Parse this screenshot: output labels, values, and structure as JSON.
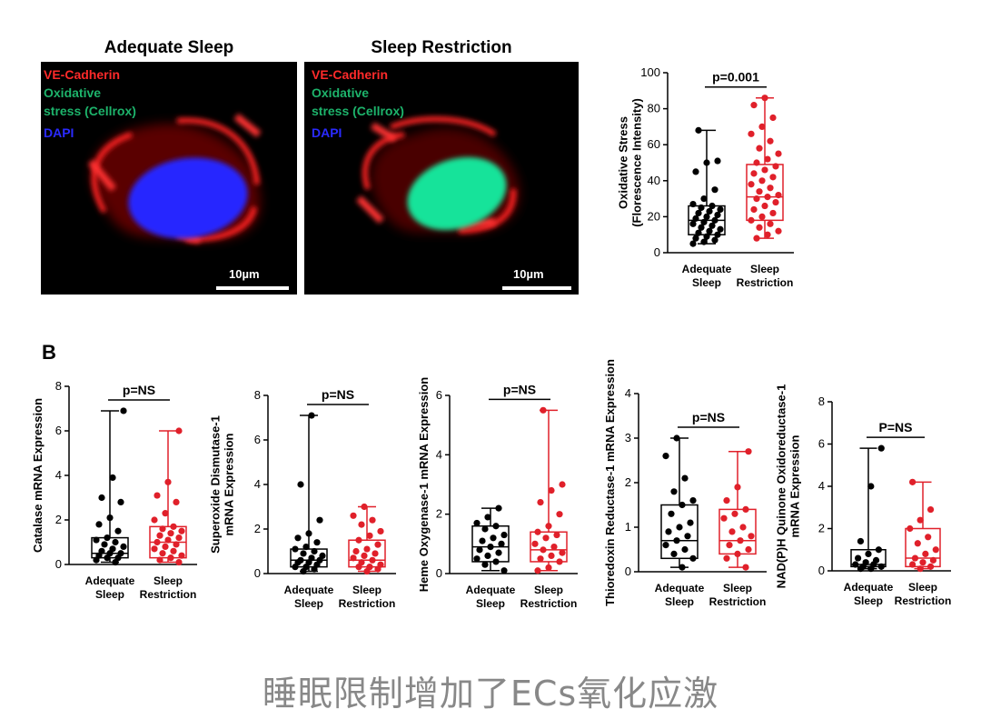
{
  "panel_a": {
    "images": [
      {
        "title": "Adequate Sleep",
        "labels": [
          "VE-Cadherin",
          "Oxidative",
          "stress (Cellrox)",
          "DAPI"
        ],
        "scale_bar": "10µm"
      },
      {
        "title": "Sleep Restriction",
        "labels": [
          "VE-Cadherin",
          "Oxidative",
          "stress (Cellrox)",
          "DAPI"
        ],
        "scale_bar": "10µm"
      }
    ],
    "label_colors": [
      "#ff2a2a",
      "#1db36b",
      "#1db36b",
      "#2a2aff"
    ]
  },
  "panel_b_letter": "B",
  "caption": "睡眠限制增加了ECs氧化应激",
  "colors": {
    "group1": "#000000",
    "group2": "#e0202a"
  },
  "chart_data": [
    {
      "type": "boxplot",
      "ylabel": [
        "Oxidative Stress",
        "(Florescence Intensity)"
      ],
      "ylim": [
        0,
        100
      ],
      "yticks": [
        0,
        20,
        40,
        60,
        80,
        100
      ],
      "groups": [
        {
          "label": [
            "Adequate",
            "Sleep"
          ],
          "min": 5,
          "q1": 10,
          "median": 18,
          "q3": 26,
          "max": 68,
          "points": [
            5,
            6,
            7,
            8,
            9,
            10,
            11,
            12,
            13,
            14,
            15,
            16,
            17,
            18,
            19,
            20,
            21,
            22,
            23,
            24,
            25,
            26,
            27,
            30,
            35,
            45,
            50,
            51,
            68
          ]
        },
        {
          "label": [
            "Sleep",
            "Restriction"
          ],
          "min": 8,
          "q1": 18,
          "median": 31,
          "q3": 49,
          "max": 86,
          "points": [
            8,
            10,
            12,
            14,
            16,
            18,
            20,
            22,
            24,
            26,
            28,
            30,
            31,
            32,
            34,
            36,
            38,
            40,
            42,
            44,
            46,
            48,
            50,
            52,
            55,
            58,
            62,
            66,
            70,
            75,
            82,
            86
          ]
        }
      ],
      "annotation": "p=0.001"
    },
    {
      "type": "boxplot",
      "ylabel": [
        "Catalase mRNA Expression"
      ],
      "ylim": [
        0,
        8
      ],
      "yticks": [
        0,
        2,
        4,
        6,
        8
      ],
      "groups": [
        {
          "label": [
            "Adequate",
            "Sleep"
          ],
          "min": 0.1,
          "q1": 0.3,
          "median": 0.5,
          "q3": 1.2,
          "max": 6.9,
          "points": [
            0.1,
            0.2,
            0.3,
            0.3,
            0.4,
            0.5,
            0.5,
            0.6,
            0.7,
            0.8,
            0.9,
            1.0,
            1.1,
            1.2,
            1.5,
            1.8,
            2.1,
            2.8,
            3.0,
            3.9,
            6.9
          ]
        },
        {
          "label": [
            "Sleep",
            "Restriction"
          ],
          "min": 0.1,
          "q1": 0.3,
          "median": 1.0,
          "q3": 1.7,
          "max": 6.0,
          "points": [
            0.1,
            0.2,
            0.3,
            0.4,
            0.5,
            0.6,
            0.7,
            0.8,
            0.9,
            1.0,
            1.1,
            1.2,
            1.3,
            1.4,
            1.5,
            1.6,
            1.7,
            2.0,
            2.3,
            2.8,
            3.1,
            3.7,
            6.0
          ]
        }
      ],
      "annotation": "p=NS"
    },
    {
      "type": "boxplot",
      "ylabel": [
        "Superoxide Dismutase-1",
        "mRNA Expression"
      ],
      "ylim": [
        0,
        8
      ],
      "yticks": [
        0,
        2,
        4,
        6,
        8
      ],
      "groups": [
        {
          "label": [
            "Adequate",
            "Sleep"
          ],
          "min": 0.1,
          "q1": 0.3,
          "median": 0.6,
          "q3": 1.1,
          "max": 7.1,
          "points": [
            0.1,
            0.2,
            0.3,
            0.3,
            0.4,
            0.5,
            0.5,
            0.6,
            0.6,
            0.7,
            0.8,
            0.9,
            1.0,
            1.1,
            1.2,
            1.4,
            1.6,
            1.8,
            2.4,
            4.0,
            7.1
          ]
        },
        {
          "label": [
            "Sleep",
            "Restriction"
          ],
          "min": 0.1,
          "q1": 0.3,
          "median": 0.6,
          "q3": 1.5,
          "max": 3.0,
          "points": [
            0.1,
            0.2,
            0.3,
            0.3,
            0.4,
            0.5,
            0.6,
            0.7,
            0.8,
            0.9,
            1.0,
            1.1,
            1.3,
            1.5,
            1.7,
            1.9,
            2.2,
            2.4,
            2.6,
            3.0
          ]
        }
      ],
      "annotation": "p=NS"
    },
    {
      "type": "boxplot",
      "ylabel": [
        "Heme Oxygenase-1 mRNA Expression"
      ],
      "ylim": [
        0,
        6
      ],
      "yticks": [
        0,
        2,
        4,
        6
      ],
      "groups": [
        {
          "label": [
            "Adequate",
            "Sleep"
          ],
          "min": 0.1,
          "q1": 0.4,
          "median": 0.9,
          "q3": 1.6,
          "max": 2.2,
          "points": [
            0.1,
            0.3,
            0.4,
            0.5,
            0.6,
            0.7,
            0.8,
            0.9,
            1.0,
            1.1,
            1.2,
            1.3,
            1.5,
            1.6,
            1.7,
            1.9,
            2.2
          ]
        },
        {
          "label": [
            "Sleep",
            "Restriction"
          ],
          "min": 0.1,
          "q1": 0.4,
          "median": 0.8,
          "q3": 1.4,
          "max": 5.5,
          "points": [
            0.1,
            0.2,
            0.4,
            0.5,
            0.6,
            0.7,
            0.8,
            0.9,
            1.0,
            1.2,
            1.3,
            1.4,
            1.6,
            2.0,
            2.4,
            2.8,
            3.0,
            5.5
          ]
        }
      ],
      "annotation": "p=NS"
    },
    {
      "type": "boxplot",
      "ylabel": [
        "Thioredoxin Reductase-1 mRNA Expression"
      ],
      "ylim": [
        0,
        4
      ],
      "yticks": [
        0,
        1,
        2,
        3,
        4
      ],
      "groups": [
        {
          "label": [
            "Adequate",
            "Sleep"
          ],
          "min": 0.1,
          "q1": 0.3,
          "median": 0.7,
          "q3": 1.5,
          "max": 3.0,
          "points": [
            0.1,
            0.3,
            0.4,
            0.5,
            0.6,
            0.7,
            0.8,
            0.9,
            1.0,
            1.1,
            1.3,
            1.5,
            1.6,
            1.8,
            2.1,
            2.6,
            3.0
          ]
        },
        {
          "label": [
            "Sleep",
            "Restriction"
          ],
          "min": 0.1,
          "q1": 0.4,
          "median": 0.7,
          "q3": 1.4,
          "max": 2.7,
          "points": [
            0.1,
            0.3,
            0.4,
            0.5,
            0.6,
            0.7,
            0.8,
            0.9,
            1.0,
            1.2,
            1.3,
            1.4,
            1.6,
            1.9,
            2.7
          ]
        }
      ],
      "annotation": "p=NS"
    },
    {
      "type": "boxplot",
      "ylabel": [
        "NAD(P)H Quinone Oxidoreductase-1",
        "mRNA Expression"
      ],
      "ylim": [
        0,
        8
      ],
      "yticks": [
        0,
        2,
        4,
        6,
        8
      ],
      "groups": [
        {
          "label": [
            "Adequate",
            "Sleep"
          ],
          "min": 0.1,
          "q1": 0.2,
          "median": 0.3,
          "q3": 1.0,
          "max": 5.8,
          "points": [
            0.1,
            0.1,
            0.2,
            0.2,
            0.3,
            0.3,
            0.4,
            0.5,
            0.6,
            0.8,
            1.0,
            1.4,
            4.0,
            5.8
          ]
        },
        {
          "label": [
            "Sleep",
            "Restriction"
          ],
          "min": 0.1,
          "q1": 0.2,
          "median": 0.6,
          "q3": 2.0,
          "max": 4.2,
          "points": [
            0.1,
            0.2,
            0.3,
            0.4,
            0.5,
            0.6,
            0.8,
            1.0,
            1.3,
            1.6,
            2.0,
            2.4,
            2.9,
            4.2
          ]
        }
      ],
      "annotation": "P=NS"
    }
  ]
}
